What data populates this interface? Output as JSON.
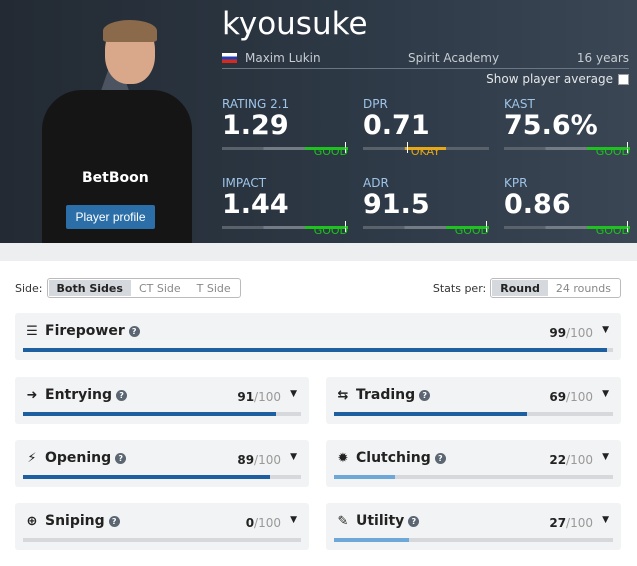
{
  "player": {
    "nickname": "kyousuke",
    "real_name": "Maxim Lukin",
    "country_flag": "russia-flag",
    "team": "Spirit Academy",
    "age": "16 years",
    "profile_button": "Player profile",
    "jersey_sponsor": "BetBoon"
  },
  "show_average": {
    "label": "Show player average",
    "checked": false
  },
  "stats": [
    {
      "label": "RATING 2.1",
      "value": "1.29",
      "rating": "GOOD",
      "color": "#1fc21f"
    },
    {
      "label": "DPR",
      "value": "0.71",
      "rating": "OKAY",
      "color": "#e6a817"
    },
    {
      "label": "KAST",
      "value": "75.6%",
      "rating": "GOOD",
      "color": "#1fc21f"
    },
    {
      "label": "IMPACT",
      "value": "1.44",
      "rating": "GOOD",
      "color": "#1fc21f"
    },
    {
      "label": "ADR",
      "value": "91.5",
      "rating": "GOOD",
      "color": "#1fc21f"
    },
    {
      "label": "KPR",
      "value": "0.86",
      "rating": "GOOD",
      "color": "#1fc21f"
    }
  ],
  "side_filter": {
    "label": "Side:",
    "options": [
      "Both Sides",
      "CT Side",
      "T Side"
    ],
    "selected": "Both Sides"
  },
  "stats_per": {
    "label": "Stats per:",
    "options": [
      "Round",
      "24 rounds"
    ],
    "selected": "Round"
  },
  "skills": [
    {
      "name": "Firepower",
      "score": 99,
      "max": "/100",
      "icon": "firepower-icon"
    },
    {
      "name": "Entrying",
      "score": 91,
      "max": "/100",
      "icon": "entrying-icon"
    },
    {
      "name": "Trading",
      "score": 69,
      "max": "/100",
      "icon": "trading-icon"
    },
    {
      "name": "Opening",
      "score": 89,
      "max": "/100",
      "icon": "opening-icon"
    },
    {
      "name": "Clutching",
      "score": 22,
      "max": "/100",
      "icon": "clutching-icon"
    },
    {
      "name": "Sniping",
      "score": 0,
      "max": "/100",
      "icon": "sniping-icon"
    },
    {
      "name": "Utility",
      "score": 27,
      "max": "/100",
      "icon": "utility-icon"
    }
  ],
  "colors": {
    "bar_high": "#1d5fa0",
    "bar_low": "#6ea8d8",
    "header_bg": "#2e3a47"
  }
}
